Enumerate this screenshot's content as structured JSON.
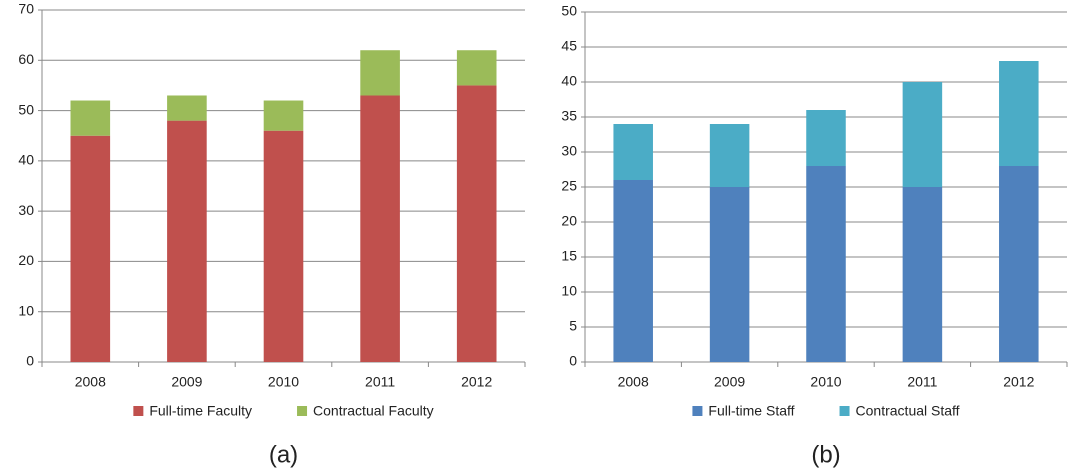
{
  "chart_data": [
    {
      "type": "stacked_bar",
      "caption": "(a)",
      "categories": [
        "2008",
        "2009",
        "2010",
        "2011",
        "2012"
      ],
      "series": [
        {
          "name": "Full-time Faculty",
          "color": "#c0504d",
          "values": [
            45,
            48,
            46,
            53,
            55
          ]
        },
        {
          "name": "Contractual Faculty",
          "color": "#9bbb59",
          "values": [
            7,
            5,
            6,
            9,
            7
          ]
        }
      ],
      "ylim": [
        0,
        70
      ],
      "yticks": [
        0,
        10,
        20,
        30,
        40,
        50,
        60,
        70
      ],
      "grid": true,
      "legend": "bottom"
    },
    {
      "type": "stacked_bar",
      "caption": "(b)",
      "categories": [
        "2008",
        "2009",
        "2010",
        "2011",
        "2012"
      ],
      "series": [
        {
          "name": "Full-time Staff",
          "color": "#4f81bd",
          "values": [
            26,
            25,
            28,
            25,
            28
          ]
        },
        {
          "name": "Contractual Staff",
          "color": "#4bacc6",
          "values": [
            8,
            9,
            8,
            15,
            15
          ]
        }
      ],
      "ylim": [
        0,
        50
      ],
      "yticks": [
        0,
        5,
        10,
        15,
        20,
        25,
        30,
        35,
        40,
        45,
        50
      ],
      "grid": true,
      "legend": "bottom"
    }
  ]
}
